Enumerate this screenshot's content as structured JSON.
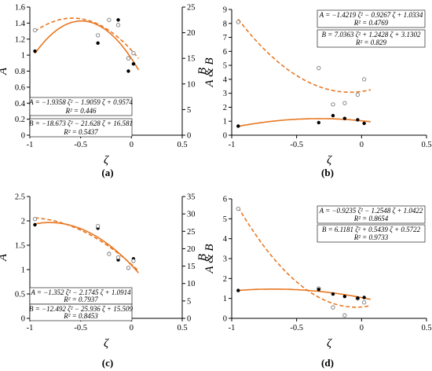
{
  "colors": {
    "fit": "#e87722",
    "filled": "#000000",
    "open_stroke": "#7a7a7a",
    "grid": "#000000"
  },
  "chart_data": [
    {
      "type": "scatter",
      "panel_label": "(a)",
      "xlabel": "ζ",
      "ylabel": "A",
      "y2label": "B",
      "xlim": [
        -1,
        0.5
      ],
      "ylim": [
        0,
        1.6
      ],
      "y2lim": [
        0,
        25
      ],
      "xticks": [
        "-1",
        "-0.5",
        "0",
        "0.5"
      ],
      "yticks": [
        "0",
        "0.2",
        "0.4",
        "0.6",
        "0.8",
        "1",
        "1.2",
        "1.4",
        "1.6"
      ],
      "y2ticks": [
        "0",
        "5",
        "10",
        "15",
        "20",
        "25"
      ],
      "series": [
        {
          "axis": "left",
          "marker": "filled",
          "line": "solid",
          "x": [
            -0.95,
            -0.33,
            -0.22,
            -0.13,
            -0.03,
            0.02
          ],
          "y": [
            1.05,
            1.15,
            1.44,
            1.44,
            0.8,
            0.89
          ],
          "fit": [
            -1.9358,
            -1.9059,
            0.9574
          ]
        },
        {
          "axis": "right",
          "marker": "open",
          "line": "dashed",
          "x": [
            -0.95,
            -0.33,
            -0.22,
            -0.13,
            -0.03,
            0.02
          ],
          "y": [
            20.5,
            19.5,
            22.5,
            21.5,
            15.0,
            16.0
          ],
          "fit": [
            -18.673,
            -21.628,
            16.581
          ]
        }
      ],
      "equations": [
        {
          "text": "A = −1.9358 ζ² − 1.9059 ζ + 0.9574",
          "r2": "R² = 0.446"
        },
        {
          "text": "B = −18.673 ζ² − 21.628 ζ + 16.581",
          "r2": "R² = 0.5437"
        }
      ]
    },
    {
      "type": "scatter",
      "panel_label": "(b)",
      "xlabel": "ζ",
      "ylabel": "A & B",
      "xlim": [
        -1,
        0.5
      ],
      "ylim": [
        0,
        9
      ],
      "xticks": [
        "-1",
        "-0.5",
        "0",
        "0.5"
      ],
      "yticks": [
        "0",
        "1",
        "2",
        "3",
        "4",
        "5",
        "6",
        "7",
        "8",
        "9"
      ],
      "series": [
        {
          "marker": "open",
          "line": "dashed",
          "x": [
            -0.95,
            -0.33,
            -0.22,
            -0.13,
            -0.03,
            0.02
          ],
          "y": [
            8.1,
            4.8,
            2.2,
            2.3,
            2.9,
            4.0
          ],
          "fit": [
            7.0363,
            1.2428,
            3.1302
          ]
        },
        {
          "marker": "filled",
          "line": "solid",
          "x": [
            -0.95,
            -0.33,
            -0.22,
            -0.13,
            -0.03,
            0.02
          ],
          "y": [
            0.65,
            0.9,
            1.4,
            1.2,
            1.1,
            0.85
          ],
          "fit": [
            -1.4219,
            -0.9267,
            1.0334
          ]
        }
      ],
      "equations": [
        {
          "text": "A = −1.4219 ζ² − 0.9267 ζ + 1.0334",
          "r2": "R² = 0.4769"
        },
        {
          "text": "B = 7.0363 ζ² + 1.2428 ζ + 3.1302",
          "r2": "R² = 0.829"
        }
      ]
    },
    {
      "type": "scatter",
      "panel_label": "(c)",
      "xlabel": "ζ",
      "ylabel": "A",
      "y2label": "B",
      "xlim": [
        -1,
        0.5
      ],
      "ylim": [
        0,
        2.5
      ],
      "y2lim": [
        0,
        35
      ],
      "xticks": [
        "-1",
        "-0.5",
        "0",
        "0.5"
      ],
      "yticks": [
        "0",
        "0.5",
        "1",
        "1.5",
        "2",
        "2.5"
      ],
      "y2ticks": [
        "0",
        "5",
        "10",
        "15",
        "20",
        "25",
        "30",
        "35"
      ],
      "series": [
        {
          "axis": "left",
          "marker": "filled",
          "line": "solid",
          "x": [
            -0.95,
            -0.33,
            -0.22,
            -0.13,
            -0.03,
            0.02
          ],
          "y": [
            1.92,
            1.85,
            1.33,
            1.2,
            1.03,
            1.22
          ],
          "fit": [
            -1.352,
            -2.1745,
            1.0914
          ]
        },
        {
          "axis": "right",
          "marker": "open",
          "line": "dashed",
          "x": [
            -0.95,
            -0.33,
            -0.22,
            -0.13,
            -0.03,
            0.02
          ],
          "y": [
            28.5,
            26.5,
            18.5,
            17.5,
            14.5,
            16.5
          ],
          "fit": [
            -12.492,
            -25.936,
            15.509
          ]
        }
      ],
      "equations": [
        {
          "text": "A = −1.352 ζ² − 2.1745 ζ + 1.0914",
          "r2": "R² = 0.7937"
        },
        {
          "text": "B = −12.492 ζ² − 25.936 ζ + 15.509",
          "r2": "R² = 0.8453"
        }
      ]
    },
    {
      "type": "scatter",
      "panel_label": "(d)",
      "xlabel": "ζ",
      "ylabel": "A & B",
      "xlim": [
        -1,
        0.5
      ],
      "ylim": [
        0,
        6
      ],
      "xticks": [
        "-1",
        "-0.5",
        "0",
        "0.5"
      ],
      "yticks": [
        "0",
        "1",
        "2",
        "3",
        "4",
        "5",
        "6"
      ],
      "series": [
        {
          "marker": "open",
          "line": "dashed",
          "x": [
            -0.95,
            -0.33,
            -0.22,
            -0.13,
            -0.03,
            0.02
          ],
          "y": [
            5.5,
            1.5,
            0.55,
            0.15,
            1.0,
            0.8
          ],
          "fit": [
            6.1181,
            0.5439,
            0.5722
          ]
        },
        {
          "marker": "filled",
          "line": "solid",
          "x": [
            -0.95,
            -0.33,
            -0.22,
            -0.13,
            -0.03,
            0.02
          ],
          "y": [
            1.4,
            1.45,
            1.22,
            1.1,
            1.02,
            1.05
          ],
          "fit": [
            -0.9235,
            -1.2548,
            1.0422
          ]
        }
      ],
      "equations": [
        {
          "text": "A = −0.9235 ζ² − 1.2548 ζ + 1.0422",
          "r2": "R² = 0.8654"
        },
        {
          "text": "B = 6.1181 ζ² + 0.5439 ζ + 0.5722",
          "r2": "R² = 0.9733"
        }
      ]
    }
  ]
}
